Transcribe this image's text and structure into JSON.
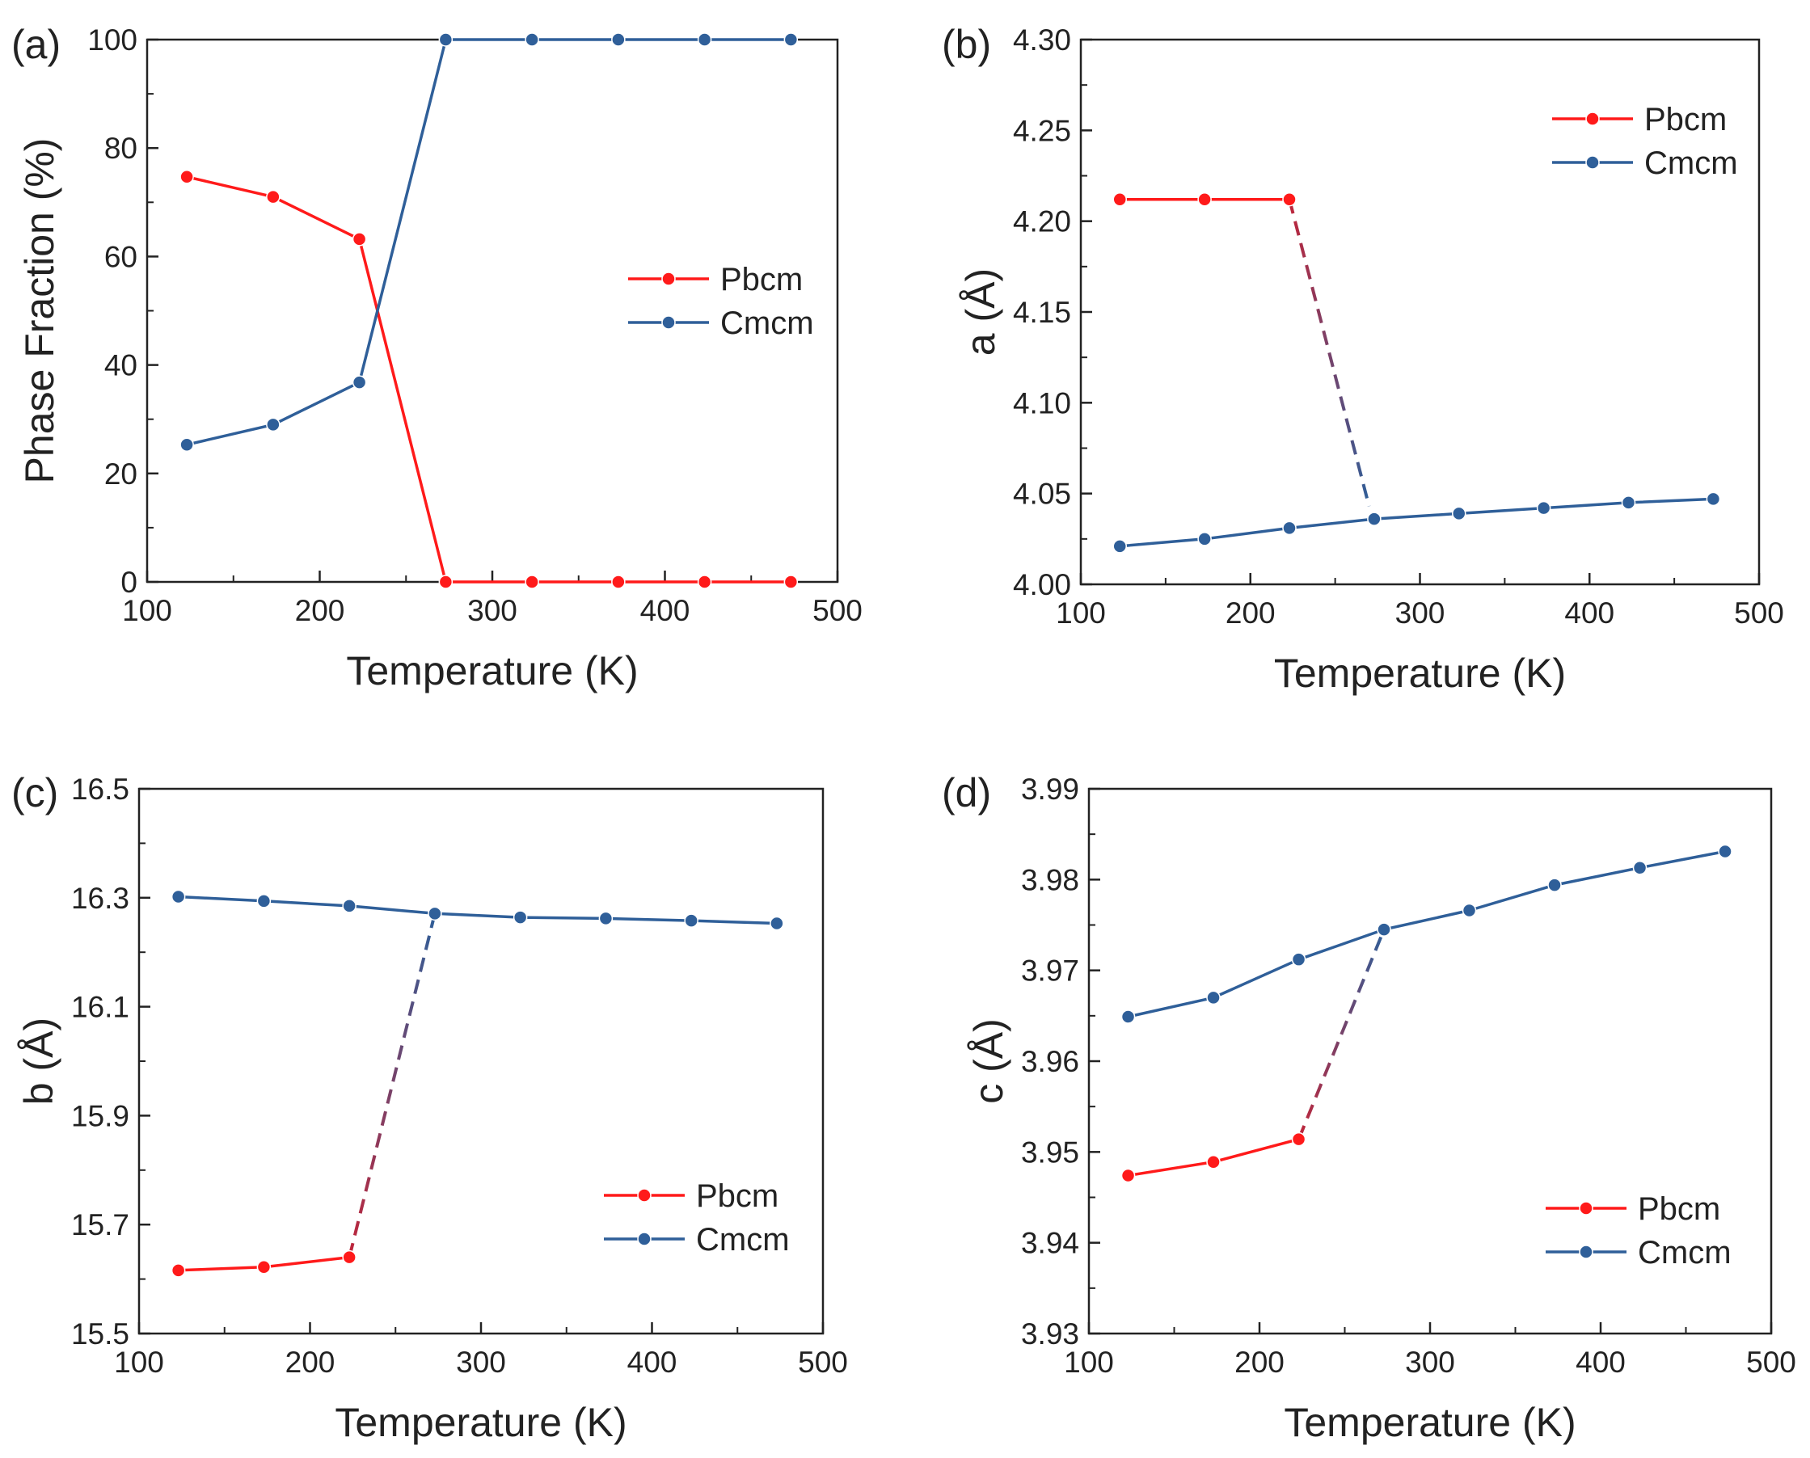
{
  "figure": {
    "colors": {
      "pbcm": "#ff1a1a",
      "cmcm": "#2f5f99",
      "frame": "#222222",
      "background": "#ffffff"
    }
  },
  "chart_data": [
    {
      "id": "a",
      "type": "line",
      "panel_label": "(a)",
      "xlabel": "Temperature (K)",
      "ylabel": "Phase Fraction (%)",
      "xlim": [
        100,
        500
      ],
      "ylim": [
        0,
        100
      ],
      "x_ticks": [
        100,
        200,
        300,
        400,
        500
      ],
      "y_ticks": [
        0,
        20,
        40,
        60,
        80,
        100
      ],
      "tick_decimals": 0,
      "legend_position": "center-right",
      "series": [
        {
          "name": "Pbcm",
          "x": [
            123,
            173,
            223,
            273,
            323,
            373,
            423,
            473
          ],
          "values": [
            74.7,
            71.0,
            63.2,
            0,
            0,
            0,
            0,
            0
          ]
        },
        {
          "name": "Cmcm",
          "x": [
            123,
            173,
            223,
            273,
            323,
            373,
            423,
            473
          ],
          "values": [
            25.3,
            29.0,
            36.8,
            100,
            100,
            100,
            100,
            100
          ]
        }
      ]
    },
    {
      "id": "b",
      "type": "line",
      "panel_label": "(b)",
      "xlabel": "Temperature (K)",
      "ylabel": "a (Å)",
      "xlim": [
        100,
        500
      ],
      "ylim": [
        4.0,
        4.3
      ],
      "x_ticks": [
        100,
        200,
        300,
        400,
        500
      ],
      "y_ticks": [
        4.0,
        4.05,
        4.1,
        4.15,
        4.2,
        4.25,
        4.3
      ],
      "tick_decimals": 2,
      "legend_position": "top-right",
      "series": [
        {
          "name": "Pbcm",
          "x": [
            123,
            173,
            223
          ],
          "values": [
            4.212,
            4.212,
            4.212
          ]
        },
        {
          "name": "Cmcm",
          "x": [
            123,
            173,
            223,
            273,
            323,
            373,
            423,
            473
          ],
          "values": [
            4.021,
            4.025,
            4.031,
            4.036,
            4.039,
            4.042,
            4.045,
            4.047
          ]
        }
      ],
      "transition": {
        "style": "dashed",
        "from": [
          223,
          4.212
        ],
        "to": [
          270,
          4.043
        ]
      }
    },
    {
      "id": "c",
      "type": "line",
      "panel_label": "(c)",
      "xlabel": "Temperature (K)",
      "ylabel": "b (Å)",
      "xlim": [
        100,
        500
      ],
      "ylim": [
        15.5,
        16.5
      ],
      "x_ticks": [
        100,
        200,
        300,
        400,
        500
      ],
      "y_ticks": [
        15.5,
        15.7,
        15.9,
        16.1,
        16.3,
        16.5
      ],
      "tick_decimals": 1,
      "legend_position": "bottom-right",
      "series": [
        {
          "name": "Pbcm",
          "x": [
            123,
            173,
            223
          ],
          "values": [
            15.616,
            15.622,
            15.64
          ]
        },
        {
          "name": "Cmcm",
          "x": [
            123,
            173,
            223,
            273,
            323,
            373,
            423,
            473
          ],
          "values": [
            16.302,
            16.294,
            16.285,
            16.271,
            16.264,
            16.262,
            16.258,
            16.253
          ]
        }
      ],
      "transition": {
        "style": "dashed",
        "from": [
          223,
          15.64
        ],
        "to": [
          273,
          16.271
        ]
      }
    },
    {
      "id": "d",
      "type": "line",
      "panel_label": "(d)",
      "xlabel": "Temperature (K)",
      "ylabel": "c (Å)",
      "xlim": [
        100,
        500
      ],
      "ylim": [
        3.93,
        3.99
      ],
      "x_ticks": [
        100,
        200,
        300,
        400,
        500
      ],
      "y_ticks": [
        3.93,
        3.94,
        3.95,
        3.96,
        3.97,
        3.98,
        3.99
      ],
      "tick_decimals": 2,
      "legend_position": "bottom-right",
      "series": [
        {
          "name": "Pbcm",
          "x": [
            123,
            173,
            223
          ],
          "values": [
            3.9474,
            3.9489,
            3.9514
          ]
        },
        {
          "name": "Cmcm",
          "x": [
            123,
            173,
            223,
            273,
            323,
            373,
            423,
            473
          ],
          "values": [
            3.9649,
            3.967,
            3.9712,
            3.9745,
            3.9766,
            3.9794,
            3.9813,
            3.9831
          ]
        }
      ],
      "transition": {
        "style": "dashed",
        "from": [
          223,
          3.9514
        ],
        "to": [
          273,
          3.9745
        ]
      }
    }
  ]
}
